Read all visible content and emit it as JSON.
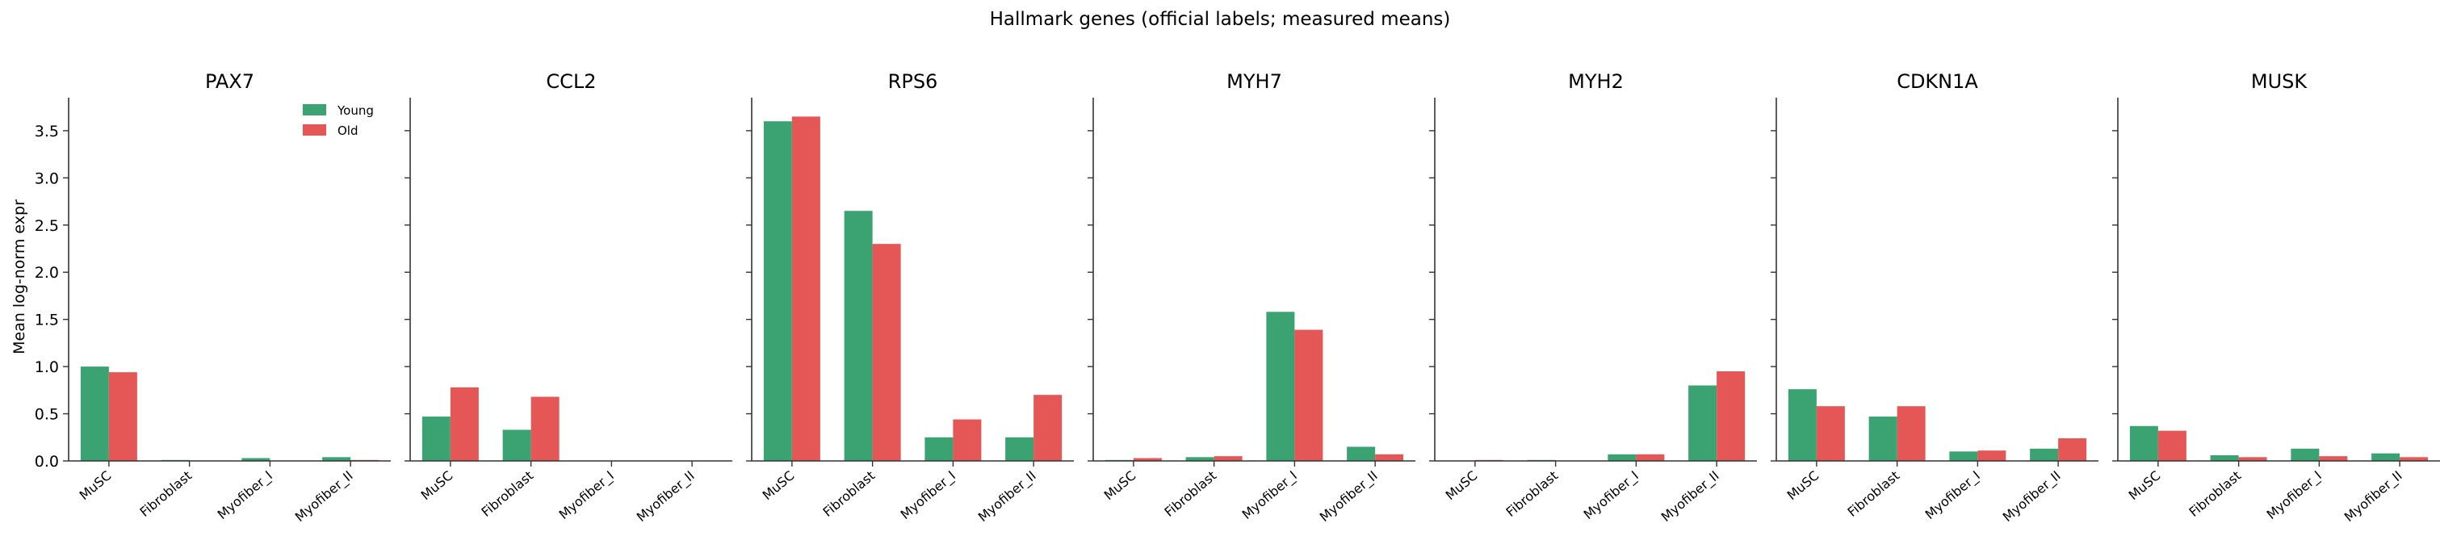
{
  "chart_data": {
    "type": "bar",
    "suptitle": "Hallmark genes (official labels; measured means)",
    "ylabel": "Mean log-norm expr",
    "ylim": [
      0,
      3.85
    ],
    "yticks": [
      "0.0",
      "0.5",
      "1.0",
      "1.5",
      "2.0",
      "2.5",
      "3.0",
      "3.5"
    ],
    "categories": [
      "MuSC",
      "Fibroblast",
      "Myofiber_I",
      "Myofiber_II"
    ],
    "legend": {
      "position": "upper-right of first panel",
      "entries": [
        "Young",
        "Old"
      ]
    },
    "colors": {
      "Young": "#3ba272",
      "Old": "#e45756"
    },
    "panels": [
      {
        "title": "PAX7",
        "series": [
          {
            "name": "Young",
            "values": [
              1.0,
              0.01,
              0.03,
              0.04
            ]
          },
          {
            "name": "Old",
            "values": [
              0.94,
              0.0,
              0.0,
              0.01
            ]
          }
        ]
      },
      {
        "title": "CCL2",
        "series": [
          {
            "name": "Young",
            "values": [
              0.47,
              0.33,
              0.0,
              0.0
            ]
          },
          {
            "name": "Old",
            "values": [
              0.78,
              0.68,
              0.0,
              0.0
            ]
          }
        ]
      },
      {
        "title": "RPS6",
        "series": [
          {
            "name": "Young",
            "values": [
              3.6,
              2.65,
              0.25,
              0.25
            ]
          },
          {
            "name": "Old",
            "values": [
              3.65,
              2.3,
              0.44,
              0.7
            ]
          }
        ]
      },
      {
        "title": "MYH7",
        "series": [
          {
            "name": "Young",
            "values": [
              0.01,
              0.04,
              1.58,
              0.15
            ]
          },
          {
            "name": "Old",
            "values": [
              0.03,
              0.05,
              1.39,
              0.07
            ]
          }
        ]
      },
      {
        "title": "MYH2",
        "series": [
          {
            "name": "Young",
            "values": [
              0.0,
              0.01,
              0.07,
              0.8
            ]
          },
          {
            "name": "Old",
            "values": [
              0.01,
              0.0,
              0.07,
              0.95
            ]
          }
        ]
      },
      {
        "title": "CDKN1A",
        "series": [
          {
            "name": "Young",
            "values": [
              0.76,
              0.47,
              0.1,
              0.13
            ]
          },
          {
            "name": "Old",
            "values": [
              0.58,
              0.58,
              0.11,
              0.24
            ]
          }
        ]
      },
      {
        "title": "MUSK",
        "series": [
          {
            "name": "Young",
            "values": [
              0.37,
              0.06,
              0.13,
              0.08
            ]
          },
          {
            "name": "Old",
            "values": [
              0.32,
              0.04,
              0.05,
              0.04
            ]
          }
        ]
      }
    ]
  }
}
